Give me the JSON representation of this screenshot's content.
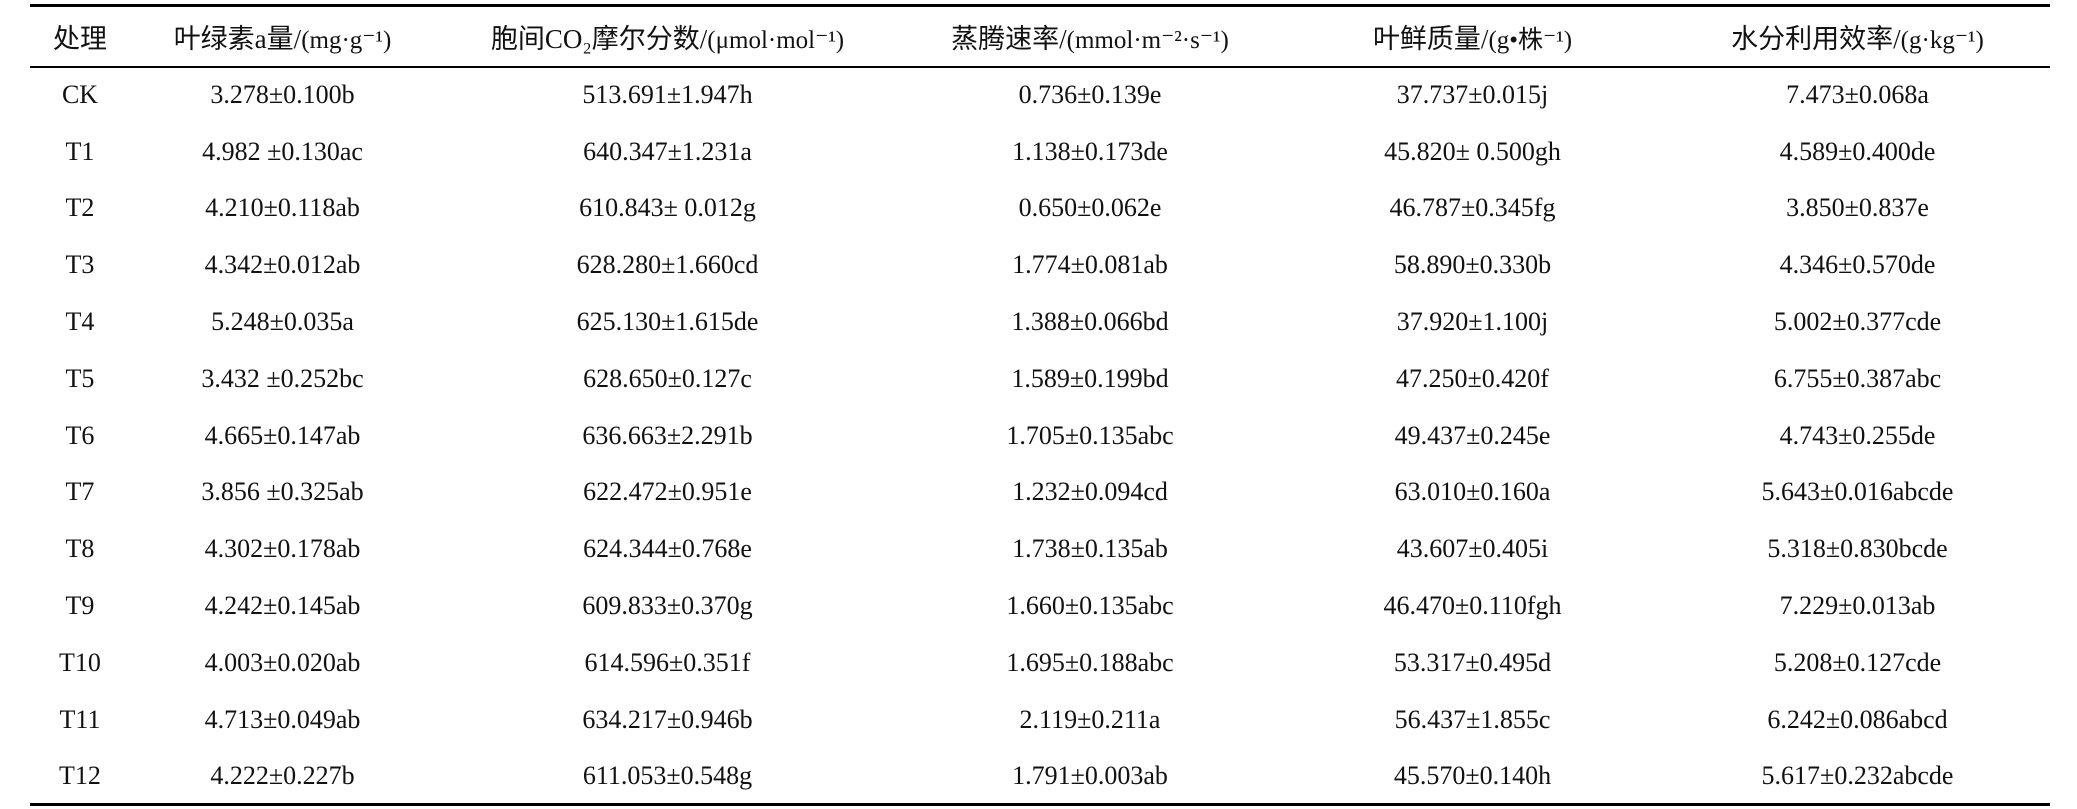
{
  "table": {
    "headers": [
      {
        "text": "处理",
        "unit": ""
      },
      {
        "text": "叶绿素a量/",
        "unit": "(mg·g⁻¹)"
      },
      {
        "text": "胞间CO₂摩尔分数/",
        "unit": "(μmol·mol⁻¹)"
      },
      {
        "text": "蒸腾速率/",
        "unit": "(mmol·m⁻²·s⁻¹)"
      },
      {
        "text": "叶鲜质量/",
        "unit": "(g•株⁻¹)"
      },
      {
        "text": "水分利用效率/",
        "unit": "(g·kg⁻¹)"
      }
    ],
    "rows": [
      [
        "CK",
        "3.278±0.100b",
        "513.691±1.947h",
        "0.736±0.139e",
        "37.737±0.015j",
        "7.473±0.068a"
      ],
      [
        "T1",
        "4.982 ±0.130ac",
        "640.347±1.231a",
        "1.138±0.173de",
        "45.820± 0.500gh",
        "4.589±0.400de"
      ],
      [
        "T2",
        "4.210±0.118ab",
        "610.843± 0.012g",
        "0.650±0.062e",
        "46.787±0.345fg",
        "3.850±0.837e"
      ],
      [
        "T3",
        "4.342±0.012ab",
        "628.280±1.660cd",
        "1.774±0.081ab",
        "58.890±0.330b",
        "4.346±0.570de"
      ],
      [
        "T4",
        "5.248±0.035a",
        "625.130±1.615de",
        "1.388±0.066bd",
        "37.920±1.100j",
        "5.002±0.377cde"
      ],
      [
        "T5",
        "3.432 ±0.252bc",
        "628.650±0.127c",
        "1.589±0.199bd",
        "47.250±0.420f",
        "6.755±0.387abc"
      ],
      [
        "T6",
        "4.665±0.147ab",
        "636.663±2.291b",
        "1.705±0.135abc",
        "49.437±0.245e",
        "4.743±0.255de"
      ],
      [
        "T7",
        "3.856 ±0.325ab",
        "622.472±0.951e",
        "1.232±0.094cd",
        "63.010±0.160a",
        "5.643±0.016abcde"
      ],
      [
        "T8",
        "4.302±0.178ab",
        "624.344±0.768e",
        "1.738±0.135ab",
        "43.607±0.405i",
        "5.318±0.830bcde"
      ],
      [
        "T9",
        "4.242±0.145ab",
        "609.833±0.370g",
        "1.660±0.135abc",
        "46.470±0.110fgh",
        "7.229±0.013ab"
      ],
      [
        "T10",
        "4.003±0.020ab",
        "614.596±0.351f",
        "1.695±0.188abc",
        "53.317±0.495d",
        "5.208±0.127cde"
      ],
      [
        "T11",
        "4.713±0.049ab",
        "634.217±0.946b",
        "2.119±0.211a",
        "56.437±1.855c",
        "6.242±0.086abcd"
      ],
      [
        "T12",
        "4.222±0.227b",
        "611.053±0.548g",
        "1.791±0.003ab",
        "45.570±0.140h",
        "5.617±0.232abcde"
      ]
    ]
  }
}
